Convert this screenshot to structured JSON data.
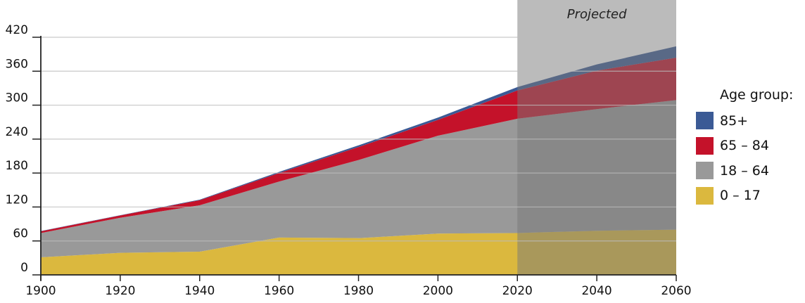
{
  "chart_data": {
    "type": "area",
    "stacked": true,
    "title": "",
    "xlabel": "",
    "ylabel": "",
    "x": [
      1900,
      1920,
      1940,
      1960,
      1980,
      2000,
      2020,
      2040,
      2060
    ],
    "xlim": [
      1900,
      2060
    ],
    "ylim": [
      0,
      420
    ],
    "x_ticks": [
      "1900",
      "1920",
      "1940",
      "1960",
      "1980",
      "2000",
      "2020",
      "2040",
      "2060"
    ],
    "y_ticks": [
      "0",
      "60",
      "120",
      "180",
      "240",
      "300",
      "360",
      "420"
    ],
    "grid": "horizontal",
    "legend_title": "Age group:",
    "legend_position": "right",
    "series": [
      {
        "name": "0 – 17",
        "color": "#dbb83e",
        "values": [
          31,
          39,
          41,
          66,
          65,
          73,
          74,
          78,
          80
        ]
      },
      {
        "name": "18 – 64",
        "color": "#999999",
        "values": [
          43,
          62,
          82,
          99,
          138,
          173,
          202,
          215,
          229
        ]
      },
      {
        "name": "65 – 84",
        "color": "#c4122a",
        "values": [
          3,
          4,
          9,
          15,
          23,
          28,
          50,
          68,
          75
        ]
      },
      {
        "name": "85+",
        "color": "#3b5a95",
        "values": [
          0.5,
          0.5,
          1,
          2,
          3,
          4,
          6,
          11,
          20
        ]
      }
    ],
    "annotations": [
      {
        "label": "Projected",
        "x_range": [
          2020,
          2060
        ],
        "overlay_color": "rgba(119,119,119,0.5)"
      }
    ]
  }
}
